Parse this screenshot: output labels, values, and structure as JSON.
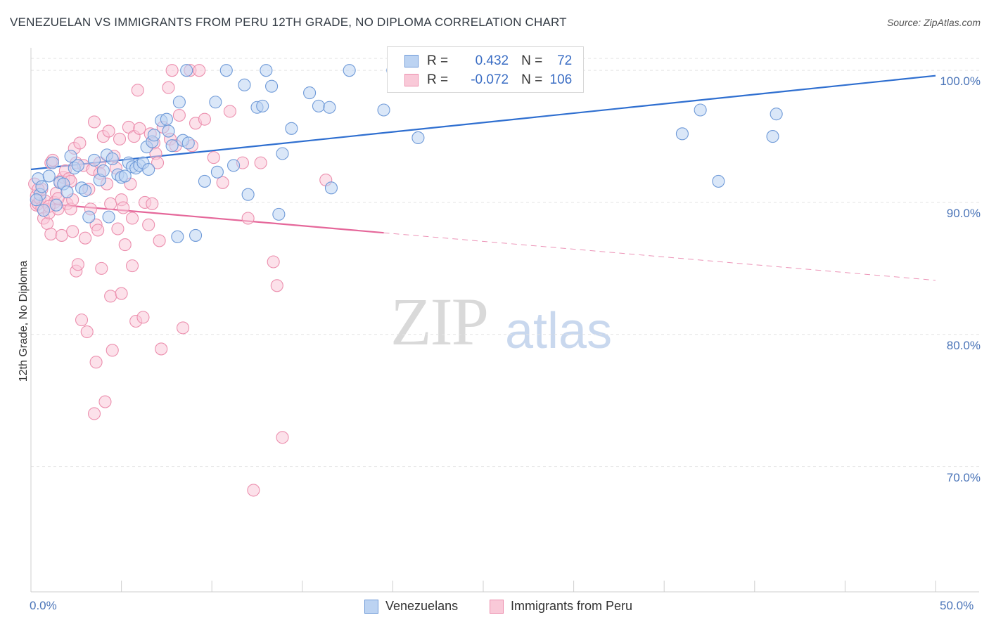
{
  "title": "VENEZUELAN VS IMMIGRANTS FROM PERU 12TH GRADE, NO DIPLOMA CORRELATION CHART",
  "source": "Source: ZipAtlas.com",
  "watermark_zip": "ZIP",
  "watermark_atlas": "atlas",
  "legend": {
    "r_label": "R =",
    "n_label": "N =",
    "series1": {
      "r": "0.432",
      "n": "72"
    },
    "series2": {
      "r": "-0.072",
      "n": "106"
    }
  },
  "colors": {
    "blue_fill": "#bcd3f2",
    "blue_stroke": "#6f9ad8",
    "blue_line": "#2f6fd0",
    "pink_fill": "#f9c9d8",
    "pink_stroke": "#ec8fae",
    "pink_line": "#e5679a",
    "grid": "#e3e3e3",
    "axis_label": "#4a74b8"
  },
  "chart_data": {
    "type": "scatter",
    "title": "VENEZUELAN VS IMMIGRANTS FROM PERU 12TH GRADE, NO DIPLOMA CORRELATION CHART",
    "xlabel": "",
    "ylabel": "12th Grade, No Diploma",
    "xlim": [
      0,
      50
    ],
    "ylim": [
      60.5,
      101.5
    ],
    "x_tick_labels": [
      "0.0%",
      "50.0%"
    ],
    "y_ticks": [
      70,
      80,
      90,
      100
    ],
    "y_tick_labels": [
      "70.0%",
      "80.0%",
      "90.0%",
      "100.0%"
    ],
    "legend_position": "top-center",
    "series": [
      {
        "name": "Venezuelans",
        "r": 0.432,
        "n": 72,
        "trend": {
          "x": [
            0,
            50
          ],
          "y": [
            92.5,
            99.6
          ],
          "dashed_from": null
        },
        "points": [
          [
            0.4,
            91.8
          ],
          [
            0.5,
            90.6
          ],
          [
            0.6,
            91.2
          ],
          [
            0.7,
            89.4
          ],
          [
            1.0,
            92.0
          ],
          [
            1.2,
            93.0
          ],
          [
            1.4,
            89.8
          ],
          [
            1.6,
            91.5
          ],
          [
            1.8,
            91.4
          ],
          [
            2.0,
            90.8
          ],
          [
            2.2,
            93.5
          ],
          [
            2.4,
            92.6
          ],
          [
            2.6,
            92.8
          ],
          [
            2.8,
            91.1
          ],
          [
            3.0,
            90.9
          ],
          [
            3.2,
            88.9
          ],
          [
            3.5,
            93.2
          ],
          [
            3.8,
            91.7
          ],
          [
            4.0,
            92.4
          ],
          [
            4.2,
            93.6
          ],
          [
            4.3,
            88.9
          ],
          [
            4.5,
            93.3
          ],
          [
            4.8,
            92.1
          ],
          [
            5.0,
            91.9
          ],
          [
            5.2,
            92.0
          ],
          [
            5.4,
            93.0
          ],
          [
            5.6,
            92.7
          ],
          [
            5.8,
            92.6
          ],
          [
            6.0,
            92.8
          ],
          [
            6.2,
            93.0
          ],
          [
            6.4,
            94.2
          ],
          [
            6.5,
            92.5
          ],
          [
            6.7,
            94.6
          ],
          [
            6.8,
            95.1
          ],
          [
            7.2,
            96.2
          ],
          [
            7.5,
            96.3
          ],
          [
            7.6,
            95.4
          ],
          [
            7.8,
            94.3
          ],
          [
            8.2,
            97.6
          ],
          [
            8.4,
            94.7
          ],
          [
            8.7,
            94.5
          ],
          [
            8.1,
            87.4
          ],
          [
            9.1,
            87.5
          ],
          [
            8.6,
            100.0
          ],
          [
            9.6,
            91.6
          ],
          [
            10.2,
            97.6
          ],
          [
            10.3,
            92.3
          ],
          [
            10.8,
            100.0
          ],
          [
            11.2,
            92.8
          ],
          [
            11.8,
            98.9
          ],
          [
            12.0,
            90.6
          ],
          [
            12.5,
            97.2
          ],
          [
            12.8,
            97.3
          ],
          [
            13.0,
            100.0
          ],
          [
            13.3,
            98.8
          ],
          [
            13.7,
            89.1
          ],
          [
            13.9,
            93.7
          ],
          [
            14.4,
            95.6
          ],
          [
            15.4,
            98.3
          ],
          [
            15.9,
            97.3
          ],
          [
            16.5,
            97.2
          ],
          [
            16.6,
            91.1
          ],
          [
            17.6,
            100.0
          ],
          [
            19.5,
            97.0
          ],
          [
            20.0,
            100.0
          ],
          [
            21.4,
            94.9
          ],
          [
            36.0,
            95.2
          ],
          [
            37.0,
            97.0
          ],
          [
            38.0,
            91.6
          ],
          [
            41.0,
            95.0
          ],
          [
            41.2,
            96.7
          ],
          [
            0.3,
            90.2
          ]
        ]
      },
      {
        "name": "Immigrants from Peru",
        "r": -0.072,
        "n": 106,
        "trend": {
          "x": [
            0,
            50
          ],
          "y": [
            90.0,
            84.1
          ],
          "dashed_from": 19.5
        },
        "points": [
          [
            0.2,
            91.4
          ],
          [
            0.3,
            89.8
          ],
          [
            0.3,
            90.5
          ],
          [
            0.4,
            89.9
          ],
          [
            0.5,
            90.3
          ],
          [
            0.6,
            91.0
          ],
          [
            0.6,
            89.6
          ],
          [
            0.7,
            88.8
          ],
          [
            0.8,
            90.1
          ],
          [
            0.9,
            88.4
          ],
          [
            1.0,
            89.2
          ],
          [
            1.1,
            93.0
          ],
          [
            1.1,
            87.6
          ],
          [
            1.2,
            93.2
          ],
          [
            1.3,
            90.0
          ],
          [
            1.4,
            90.7
          ],
          [
            1.5,
            89.5
          ],
          [
            1.6,
            91.6
          ],
          [
            1.7,
            87.5
          ],
          [
            1.8,
            91.9
          ],
          [
            1.9,
            92.4
          ],
          [
            2.0,
            89.9
          ],
          [
            2.1,
            91.8
          ],
          [
            2.2,
            89.5
          ],
          [
            2.3,
            87.8
          ],
          [
            2.3,
            90.2
          ],
          [
            2.4,
            94.1
          ],
          [
            2.5,
            93.0
          ],
          [
            2.5,
            84.8
          ],
          [
            2.6,
            85.3
          ],
          [
            2.7,
            94.5
          ],
          [
            2.8,
            81.1
          ],
          [
            2.9,
            92.8
          ],
          [
            3.0,
            87.3
          ],
          [
            3.1,
            80.2
          ],
          [
            3.2,
            91.0
          ],
          [
            3.3,
            89.5
          ],
          [
            3.4,
            92.5
          ],
          [
            3.5,
            96.1
          ],
          [
            3.6,
            88.3
          ],
          [
            3.6,
            77.9
          ],
          [
            3.7,
            87.9
          ],
          [
            3.8,
            93.0
          ],
          [
            3.8,
            92.2
          ],
          [
            3.9,
            85.0
          ],
          [
            4.0,
            95.0
          ],
          [
            4.1,
            74.9
          ],
          [
            4.2,
            91.4
          ],
          [
            4.3,
            95.4
          ],
          [
            4.4,
            89.9
          ],
          [
            4.4,
            82.9
          ],
          [
            4.5,
            78.8
          ],
          [
            4.6,
            93.5
          ],
          [
            4.7,
            92.6
          ],
          [
            4.8,
            88.0
          ],
          [
            4.9,
            94.8
          ],
          [
            5.0,
            83.1
          ],
          [
            5.0,
            90.2
          ],
          [
            5.1,
            89.6
          ],
          [
            5.2,
            86.8
          ],
          [
            5.4,
            95.7
          ],
          [
            5.5,
            91.4
          ],
          [
            5.6,
            88.8
          ],
          [
            5.6,
            85.2
          ],
          [
            5.7,
            95.0
          ],
          [
            5.8,
            81.0
          ],
          [
            5.9,
            98.5
          ],
          [
            6.0,
            95.6
          ],
          [
            6.2,
            81.3
          ],
          [
            6.3,
            90.0
          ],
          [
            6.5,
            88.3
          ],
          [
            6.6,
            95.2
          ],
          [
            6.7,
            89.9
          ],
          [
            6.8,
            94.5
          ],
          [
            6.9,
            93.7
          ],
          [
            7.0,
            93.0
          ],
          [
            7.1,
            87.1
          ],
          [
            7.2,
            78.9
          ],
          [
            7.3,
            95.7
          ],
          [
            7.6,
            98.7
          ],
          [
            7.7,
            94.8
          ],
          [
            7.8,
            100.0
          ],
          [
            8.0,
            94.3
          ],
          [
            8.2,
            96.6
          ],
          [
            8.4,
            80.5
          ],
          [
            8.8,
            100.0
          ],
          [
            8.9,
            94.3
          ],
          [
            9.1,
            96.0
          ],
          [
            9.6,
            96.3
          ],
          [
            10.1,
            93.4
          ],
          [
            10.6,
            91.5
          ],
          [
            11.0,
            96.9
          ],
          [
            11.7,
            93.0
          ],
          [
            12.0,
            88.8
          ],
          [
            12.3,
            68.2
          ],
          [
            12.7,
            93.0
          ],
          [
            13.4,
            85.5
          ],
          [
            13.6,
            83.7
          ],
          [
            13.9,
            72.2
          ],
          [
            16.3,
            91.7
          ],
          [
            3.5,
            74.0
          ],
          [
            1.0,
            89.7
          ],
          [
            0.4,
            91.0
          ],
          [
            2.2,
            91.6
          ],
          [
            9.3,
            100.0
          ],
          [
            1.5,
            90.3
          ]
        ]
      }
    ]
  },
  "bottom_legend": {
    "item1": "Venezuelans",
    "item2": "Immigrants from Peru"
  }
}
